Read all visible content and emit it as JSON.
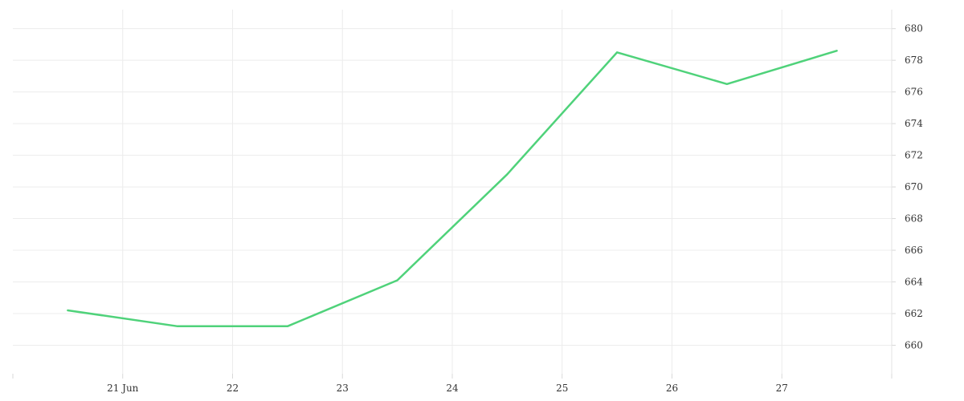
{
  "chart_data": {
    "type": "line",
    "x_ticks": [
      {
        "x": 1.5,
        "label": "21 Jun"
      },
      {
        "x": 2.5,
        "label": "22"
      },
      {
        "x": 3.5,
        "label": "23"
      },
      {
        "x": 4.5,
        "label": "24"
      },
      {
        "x": 5.5,
        "label": "25"
      },
      {
        "x": 6.5,
        "label": "26"
      },
      {
        "x": 7.5,
        "label": "27"
      }
    ],
    "y_ticks": [
      660,
      662,
      664,
      666,
      668,
      670,
      672,
      674,
      676,
      678,
      680
    ],
    "xlim": [
      0.5,
      8.5
    ],
    "ylim": [
      658.2,
      681.2
    ],
    "y_axis_side": "right",
    "grid": true,
    "title": "",
    "xlabel": "",
    "ylabel": "",
    "series": [
      {
        "color": "#4fd27a",
        "x": [
          1,
          2,
          3,
          4,
          5,
          6,
          7,
          8
        ],
        "values": [
          662.2,
          661.2,
          661.2,
          664.1,
          670.8,
          678.5,
          676.5,
          678.6
        ]
      }
    ]
  }
}
